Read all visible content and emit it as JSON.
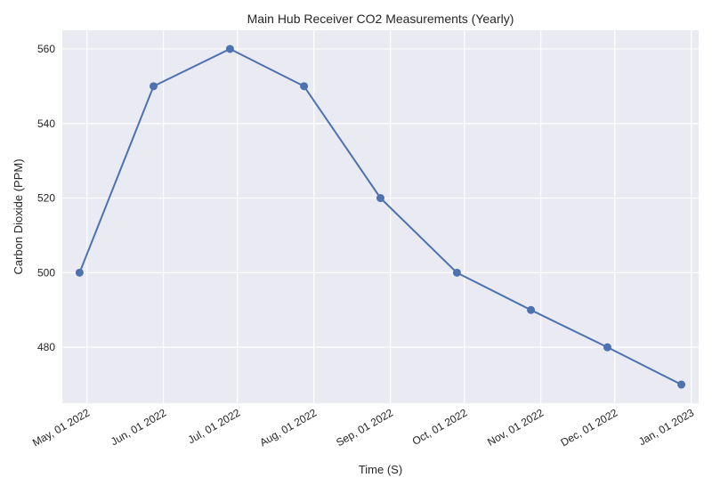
{
  "chart_data": {
    "type": "line",
    "title": "Main Hub Receiver CO2 Measurements (Yearly)",
    "xlabel": "Time (S)",
    "ylabel": "Carbon Dioxide (PPM)",
    "x": [
      "2022-04-28",
      "2022-05-28",
      "2022-06-28",
      "2022-07-28",
      "2022-08-28",
      "2022-09-28",
      "2022-10-28",
      "2022-11-28",
      "2022-12-28"
    ],
    "series": [
      {
        "values": [
          500,
          550,
          560,
          550,
          520,
          500,
          490,
          480,
          470
        ]
      }
    ],
    "xticks": [
      "2022-05-01",
      "2022-06-01",
      "2022-07-01",
      "2022-08-01",
      "2022-09-01",
      "2022-10-01",
      "2022-11-01",
      "2022-12-01",
      "2023-01-01"
    ],
    "xtick_labels": [
      "May, 01 2022",
      "Jun, 01 2022",
      "Jul, 01 2022",
      "Aug, 01 2022",
      "Sep, 01 2022",
      "Oct, 01 2022",
      "Nov, 01 2022",
      "Dec, 01 2022",
      "Jan, 01 2023"
    ],
    "yticks": [
      480,
      500,
      520,
      540,
      560
    ],
    "xlim": [
      "2022-04-21",
      "2023-01-04"
    ],
    "ylim": [
      465,
      565
    ],
    "grid": true,
    "colors": {
      "background": "#eaeaf2",
      "grid": "#ffffff",
      "line": "#4c72b0"
    }
  }
}
